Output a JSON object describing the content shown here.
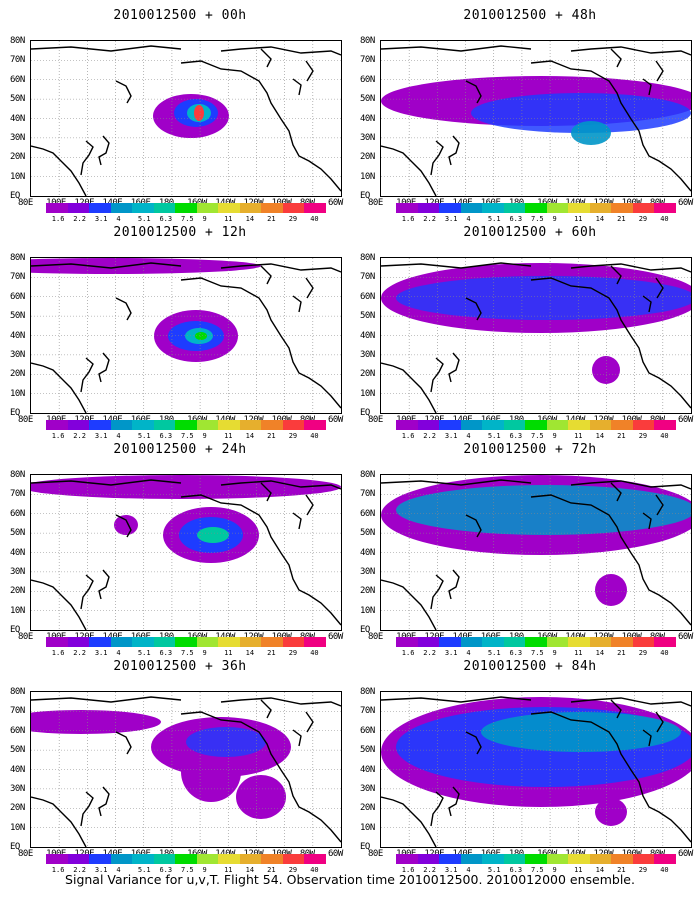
{
  "panels": [
    {
      "title": "2010012500 + 00h"
    },
    {
      "title": "2010012500 + 48h"
    },
    {
      "title": "2010012500 + 12h"
    },
    {
      "title": "2010012500 + 60h"
    },
    {
      "title": "2010012500 + 24h"
    },
    {
      "title": "2010012500 + 72h"
    },
    {
      "title": "2010012500 + 36h"
    },
    {
      "title": "2010012500 + 84h"
    }
  ],
  "lon_labels": [
    "80E",
    "100E",
    "120E",
    "140E",
    "160E",
    "180",
    "160W",
    "140W",
    "120W",
    "100W",
    "80W",
    "60W"
  ],
  "lat_labels": [
    "80N",
    "70N",
    "60N",
    "50N",
    "40N",
    "30N",
    "20N",
    "10N",
    "EQ"
  ],
  "colorbar": {
    "labels": [
      "1.6",
      "2.2",
      "3.1",
      "4",
      "5.1",
      "6.3",
      "7.5",
      "9",
      "11",
      "14",
      "21",
      "29",
      "40"
    ],
    "colors": [
      "#a000c8",
      "#8200dc",
      "#1e3cff",
      "#0096c8",
      "#00b4c8",
      "#00c8a0",
      "#00dc00",
      "#a0e632",
      "#e6dc32",
      "#e6af2d",
      "#f08228",
      "#fa3c3c",
      "#f00082"
    ]
  },
  "caption": "Signal Variance for u,v,T. Flight 54. Observation time 2010012500. 2010012000 ensemble."
}
